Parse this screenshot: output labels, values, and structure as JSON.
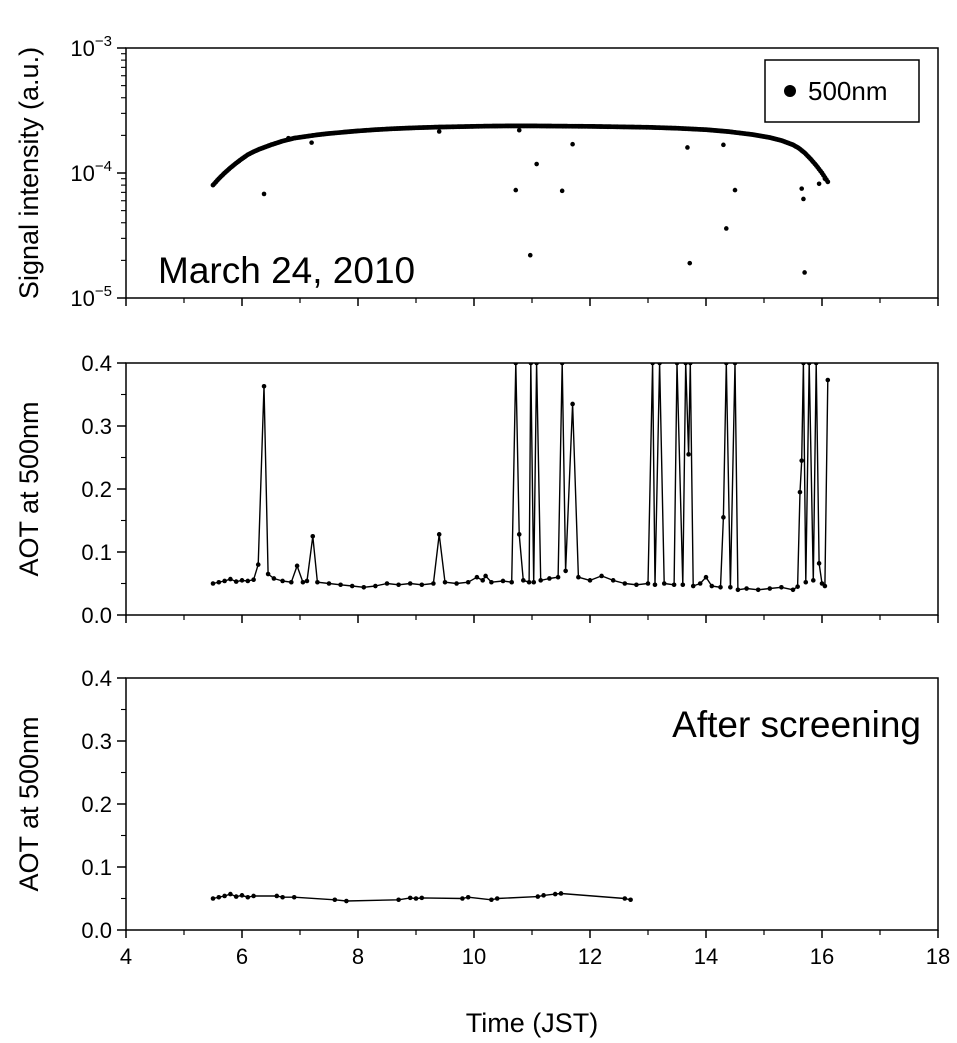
{
  "chart_data": [
    {
      "type": "scatter",
      "ylabel": "Signal intensity (a.u.)",
      "yscale": "log",
      "ylim": [
        1e-05,
        0.001
      ],
      "xlim": [
        4,
        18
      ],
      "yticks": [
        {
          "value": 0.001,
          "base": "10",
          "exp": "−3"
        },
        {
          "value": 0.0001,
          "base": "10",
          "exp": "−4"
        },
        {
          "value": 1e-05,
          "base": "10",
          "exp": "−5"
        }
      ],
      "annotation": "March 24, 2010",
      "legend": {
        "label": "500nm",
        "position": "top-right"
      },
      "series": [
        {
          "name": "500nm",
          "color": "#000000",
          "curve": [
            [
              5.5,
              8e-05
            ],
            [
              5.6,
              9e-05
            ],
            [
              5.7,
              0.0001
            ],
            [
              5.8,
              0.00011
            ],
            [
              5.9,
              0.00012
            ],
            [
              6.0,
              0.00013
            ],
            [
              6.1,
              0.00014
            ],
            [
              6.2,
              0.000148
            ],
            [
              6.3,
              0.000155
            ],
            [
              6.5,
              0.000168
            ],
            [
              6.7,
              0.00018
            ],
            [
              6.9,
              0.00019
            ],
            [
              7.1,
              0.000196
            ],
            [
              7.3,
              0.000202
            ],
            [
              7.5,
              0.000207
            ],
            [
              7.8,
              0.000213
            ],
            [
              8.0,
              0.000217
            ],
            [
              8.3,
              0.000222
            ],
            [
              8.6,
              0.000226
            ],
            [
              9.0,
              0.00023
            ],
            [
              9.4,
              0.000233
            ],
            [
              9.8,
              0.000235
            ],
            [
              10.2,
              0.000237
            ],
            [
              10.6,
              0.000238
            ],
            [
              11.0,
              0.000238
            ],
            [
              11.5,
              0.000237
            ],
            [
              12.0,
              0.000236
            ],
            [
              12.5,
              0.000234
            ],
            [
              13.0,
              0.000232
            ],
            [
              13.5,
              0.000228
            ],
            [
              14.0,
              0.000222
            ],
            [
              14.4,
              0.000214
            ],
            [
              14.8,
              0.000203
            ],
            [
              15.1,
              0.000192
            ],
            [
              15.3,
              0.000182
            ],
            [
              15.5,
              0.000168
            ],
            [
              15.6,
              0.000158
            ],
            [
              15.7,
              0.000145
            ],
            [
              15.8,
              0.00013
            ],
            [
              15.9,
              0.000115
            ],
            [
              16.0,
              0.0001
            ],
            [
              16.1,
              8.5e-05
            ]
          ],
          "outliers": [
            [
              6.38,
              6.8e-05
            ],
            [
              6.8,
              0.00019
            ],
            [
              7.2,
              0.000175
            ],
            [
              9.4,
              0.000215
            ],
            [
              10.72,
              7.3e-05
            ],
            [
              10.78,
              0.00022
            ],
            [
              10.97,
              2.2e-05
            ],
            [
              11.08,
              0.000118
            ],
            [
              11.52,
              7.2e-05
            ],
            [
              11.7,
              0.00017
            ],
            [
              13.68,
              0.00016
            ],
            [
              13.72,
              1.9e-05
            ],
            [
              14.3,
              0.000168
            ],
            [
              14.35,
              3.6e-05
            ],
            [
              14.5,
              7.3e-05
            ],
            [
              15.65,
              7.5e-05
            ],
            [
              15.68,
              6.2e-05
            ],
            [
              15.7,
              1.6e-05
            ],
            [
              15.95,
              8.2e-05
            ],
            [
              16.05,
              9e-05
            ]
          ]
        }
      ]
    },
    {
      "type": "line",
      "ylabel": "AOT at 500nm",
      "ylim": [
        0.0,
        0.4
      ],
      "xlim": [
        4,
        18
      ],
      "yticks": [
        "0.0",
        "0.1",
        "0.2",
        "0.3",
        "0.4"
      ],
      "series": [
        {
          "color": "#000000",
          "points": [
            [
              5.5,
              0.05
            ],
            [
              5.6,
              0.052
            ],
            [
              5.7,
              0.054
            ],
            [
              5.8,
              0.057
            ],
            [
              5.9,
              0.053
            ],
            [
              6.0,
              0.055
            ],
            [
              6.1,
              0.054
            ],
            [
              6.2,
              0.056
            ],
            [
              6.28,
              0.08
            ],
            [
              6.38,
              0.363
            ],
            [
              6.45,
              0.065
            ],
            [
              6.55,
              0.058
            ],
            [
              6.7,
              0.054
            ],
            [
              6.85,
              0.052
            ],
            [
              6.95,
              0.078
            ],
            [
              7.05,
              0.052
            ],
            [
              7.12,
              0.054
            ],
            [
              7.22,
              0.125
            ],
            [
              7.3,
              0.052
            ],
            [
              7.5,
              0.05
            ],
            [
              7.7,
              0.048
            ],
            [
              7.9,
              0.046
            ],
            [
              8.1,
              0.044
            ],
            [
              8.3,
              0.046
            ],
            [
              8.5,
              0.05
            ],
            [
              8.7,
              0.048
            ],
            [
              8.9,
              0.05
            ],
            [
              9.1,
              0.048
            ],
            [
              9.3,
              0.05
            ],
            [
              9.4,
              0.128
            ],
            [
              9.5,
              0.052
            ],
            [
              9.7,
              0.05
            ],
            [
              9.9,
              0.052
            ],
            [
              10.05,
              0.06
            ],
            [
              10.15,
              0.055
            ],
            [
              10.2,
              0.062
            ],
            [
              10.3,
              0.052
            ],
            [
              10.5,
              0.054
            ],
            [
              10.65,
              0.052
            ],
            [
              10.72,
              0.4
            ],
            [
              10.78,
              0.128
            ],
            [
              10.85,
              0.055
            ],
            [
              10.95,
              0.052
            ],
            [
              10.98,
              0.4
            ],
            [
              11.03,
              0.052
            ],
            [
              11.08,
              0.4
            ],
            [
              11.15,
              0.055
            ],
            [
              11.3,
              0.058
            ],
            [
              11.45,
              0.06
            ],
            [
              11.52,
              0.4
            ],
            [
              11.58,
              0.07
            ],
            [
              11.7,
              0.335
            ],
            [
              11.8,
              0.06
            ],
            [
              12.0,
              0.055
            ],
            [
              12.2,
              0.062
            ],
            [
              12.4,
              0.055
            ],
            [
              12.6,
              0.05
            ],
            [
              12.8,
              0.048
            ],
            [
              13.0,
              0.05
            ],
            [
              13.08,
              0.4
            ],
            [
              13.12,
              0.048
            ],
            [
              13.2,
              0.4
            ],
            [
              13.28,
              0.05
            ],
            [
              13.45,
              0.048
            ],
            [
              13.5,
              0.4
            ],
            [
              13.6,
              0.048
            ],
            [
              13.65,
              0.4
            ],
            [
              13.7,
              0.255
            ],
            [
              13.73,
              0.4
            ],
            [
              13.78,
              0.046
            ],
            [
              13.9,
              0.05
            ],
            [
              14.0,
              0.06
            ],
            [
              14.1,
              0.046
            ],
            [
              14.25,
              0.044
            ],
            [
              14.3,
              0.155
            ],
            [
              14.35,
              0.4
            ],
            [
              14.42,
              0.044
            ],
            [
              14.5,
              0.4
            ],
            [
              14.55,
              0.04
            ],
            [
              14.7,
              0.042
            ],
            [
              14.9,
              0.04
            ],
            [
              15.1,
              0.042
            ],
            [
              15.3,
              0.044
            ],
            [
              15.5,
              0.04
            ],
            [
              15.58,
              0.045
            ],
            [
              15.62,
              0.195
            ],
            [
              15.65,
              0.245
            ],
            [
              15.68,
              0.4
            ],
            [
              15.72,
              0.052
            ],
            [
              15.78,
              0.4
            ],
            [
              15.85,
              0.055
            ],
            [
              15.9,
              0.4
            ],
            [
              15.95,
              0.082
            ],
            [
              16.0,
              0.05
            ],
            [
              16.05,
              0.046
            ],
            [
              16.1,
              0.373
            ]
          ]
        }
      ]
    },
    {
      "type": "line",
      "ylabel": "AOT at 500nm",
      "ylim": [
        0.0,
        0.4
      ],
      "xlim": [
        4,
        18
      ],
      "yticks": [
        "0.0",
        "0.1",
        "0.2",
        "0.3",
        "0.4"
      ],
      "xticks": [
        "4",
        "6",
        "8",
        "10",
        "12",
        "14",
        "16",
        "18"
      ],
      "xlabel": "Time (JST)",
      "annotation": "After screening",
      "series": [
        {
          "color": "#000000",
          "points": [
            [
              5.5,
              0.05
            ],
            [
              5.6,
              0.052
            ],
            [
              5.7,
              0.054
            ],
            [
              5.8,
              0.057
            ],
            [
              5.9,
              0.053
            ],
            [
              6.0,
              0.055
            ],
            [
              6.1,
              0.052
            ],
            [
              6.2,
              0.054
            ],
            [
              6.6,
              0.054
            ],
            [
              6.7,
              0.052
            ],
            [
              6.9,
              0.052
            ],
            [
              7.6,
              0.048
            ],
            [
              7.8,
              0.046
            ],
            [
              8.7,
              0.048
            ],
            [
              8.9,
              0.051
            ],
            [
              9.0,
              0.05
            ],
            [
              9.1,
              0.051
            ],
            [
              9.8,
              0.05
            ],
            [
              9.9,
              0.052
            ],
            [
              10.3,
              0.048
            ],
            [
              10.4,
              0.05
            ],
            [
              11.1,
              0.053
            ],
            [
              11.2,
              0.055
            ],
            [
              11.4,
              0.057
            ],
            [
              11.5,
              0.058
            ],
            [
              12.6,
              0.05
            ],
            [
              12.7,
              0.048
            ]
          ]
        }
      ]
    }
  ]
}
